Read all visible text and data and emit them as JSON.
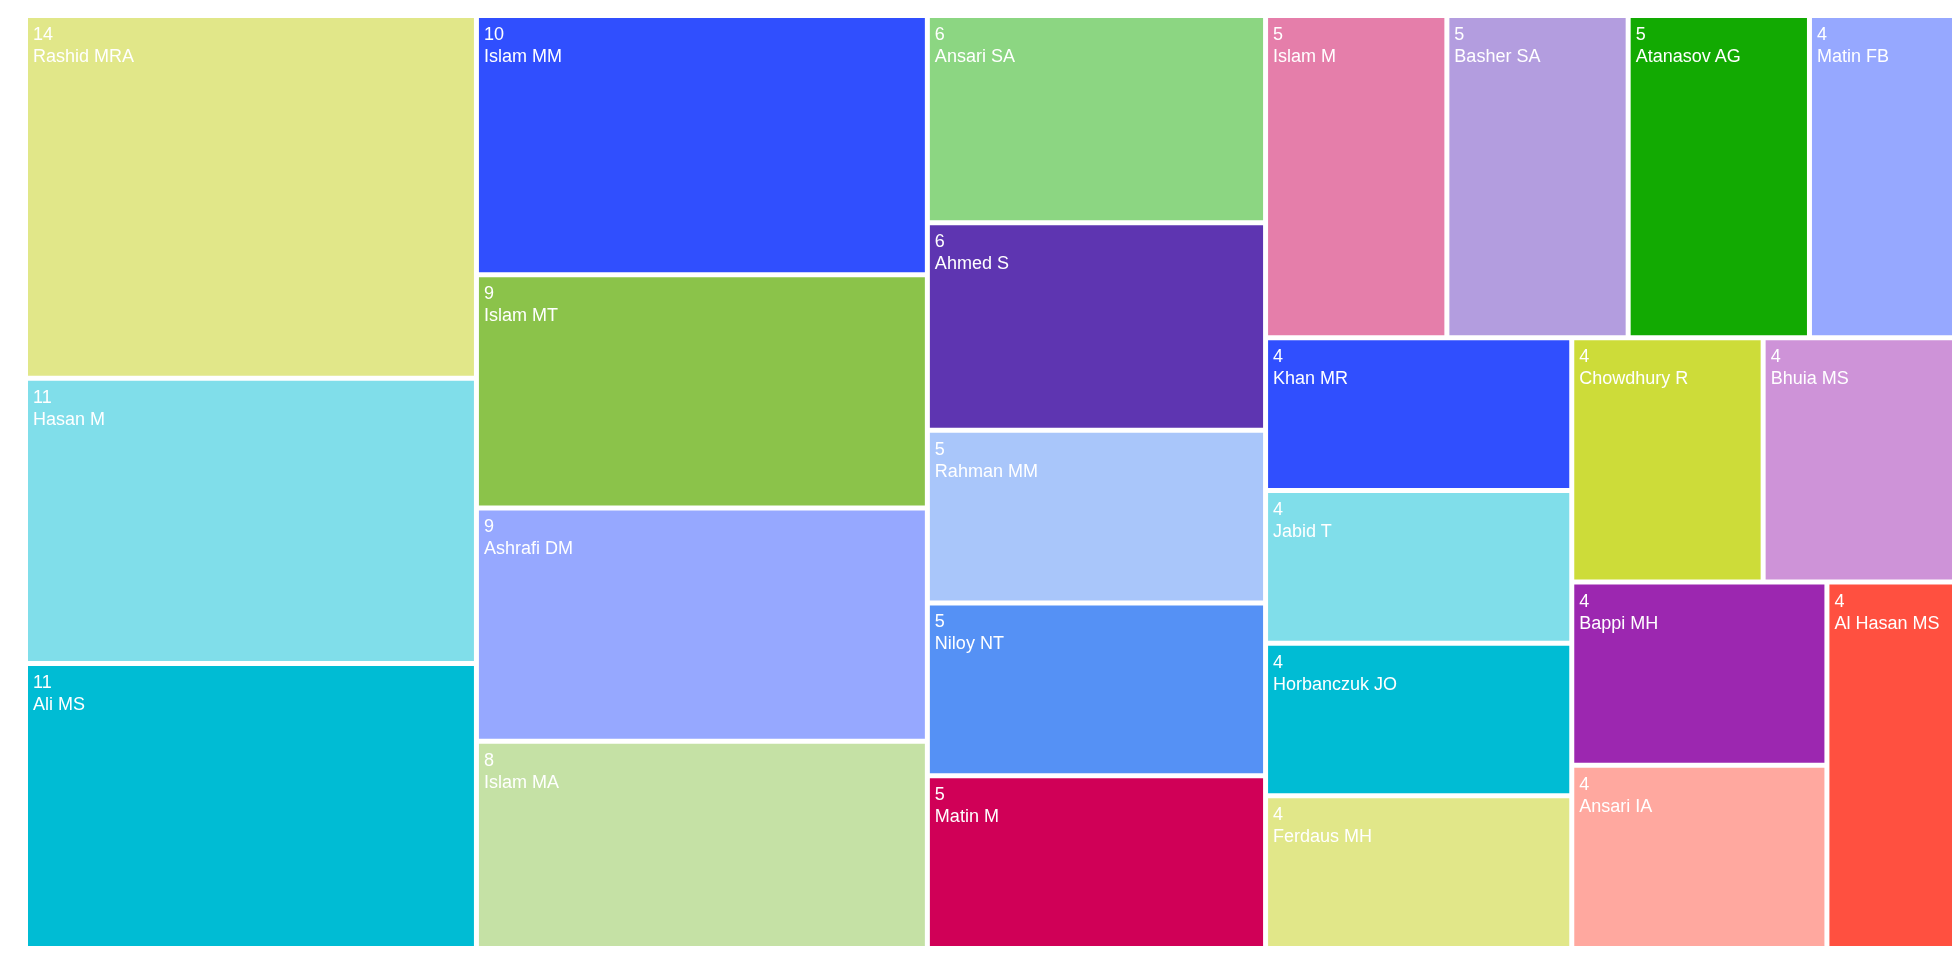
{
  "chart_data": {
    "type": "other",
    "data_labels": true,
    "categories": [
      "Rashid MRA",
      "Ali MS",
      "Hasan M",
      "Islam MM",
      "Ashrafi DM",
      "Islam MT",
      "Islam MA",
      "Ahmed S",
      "Ansari SA",
      "Atanasov AG",
      "Basher SA",
      "Islam M",
      "Matin M",
      "Niloy NT",
      "Rahman MM",
      "Al Hasan MS",
      "Ansari IA",
      "Bappi MH",
      "Bhuia MS",
      "Chowdhury R",
      "Ferdaus MH",
      "Horbanczuk JO",
      "Jabid T",
      "Khan MR",
      "Matin FB"
    ],
    "values": [
      14,
      11,
      11,
      10,
      9,
      9,
      8,
      6,
      6,
      5,
      5,
      5,
      5,
      5,
      5,
      4,
      4,
      4,
      4,
      4,
      4,
      4,
      4,
      4,
      4
    ],
    "colors": [
      "#e1e789",
      "#00bcd4",
      "#80deea",
      "#304ffe",
      "#96a8ff",
      "#8bc34a",
      "#c5e1a5",
      "#5e35b1",
      "#8cd682",
      "#12aa02",
      "#b39ddf",
      "#e57eaa",
      "#d00057",
      "#5591f5",
      "#a9c6fa",
      "#ff5040",
      "#ffa89f",
      "#9c27b0",
      "#ce93d8",
      "#cddc39",
      "#e1e789",
      "#00bcd4",
      "#80deea",
      "#304ffe",
      "#96a8ff"
    ]
  }
}
